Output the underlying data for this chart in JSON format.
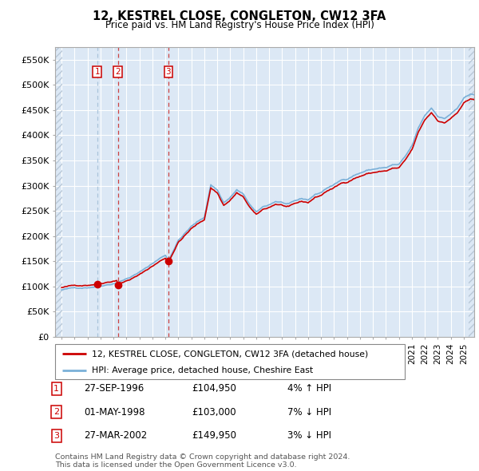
{
  "title": "12, KESTREL CLOSE, CONGLETON, CW12 3FA",
  "subtitle": "Price paid vs. HM Land Registry's House Price Index (HPI)",
  "legend_line1": "12, KESTREL CLOSE, CONGLETON, CW12 3FA (detached house)",
  "legend_line2": "HPI: Average price, detached house, Cheshire East",
  "footer1": "Contains HM Land Registry data © Crown copyright and database right 2024.",
  "footer2": "This data is licensed under the Open Government Licence v3.0.",
  "sales": [
    {
      "label": "1",
      "date": "27-SEP-1996",
      "price": 104950,
      "hpi_rel": "4% ↑ HPI",
      "year": 1996.75
    },
    {
      "label": "2",
      "date": "01-MAY-1998",
      "price": 103000,
      "hpi_rel": "7% ↓ HPI",
      "year": 1998.33
    },
    {
      "label": "3",
      "date": "27-MAR-2002",
      "price": 149950,
      "hpi_rel": "3% ↓ HPI",
      "year": 2002.23
    }
  ],
  "ylim": [
    0,
    575000
  ],
  "yticks": [
    0,
    50000,
    100000,
    150000,
    200000,
    250000,
    300000,
    350000,
    400000,
    450000,
    500000,
    550000
  ],
  "xlim_start": 1993.5,
  "xlim_end": 2025.8,
  "hatch_end": 1994.08,
  "plot_bg": "#dce8f5",
  "background_color": "#ffffff",
  "grid_color": "#ffffff",
  "hatch_color": "#b8c8d8",
  "red_color": "#cc0000",
  "blue_color": "#7ab0d8",
  "vline1_color": "#aac4dc",
  "vline_red_color": "#cc4444"
}
